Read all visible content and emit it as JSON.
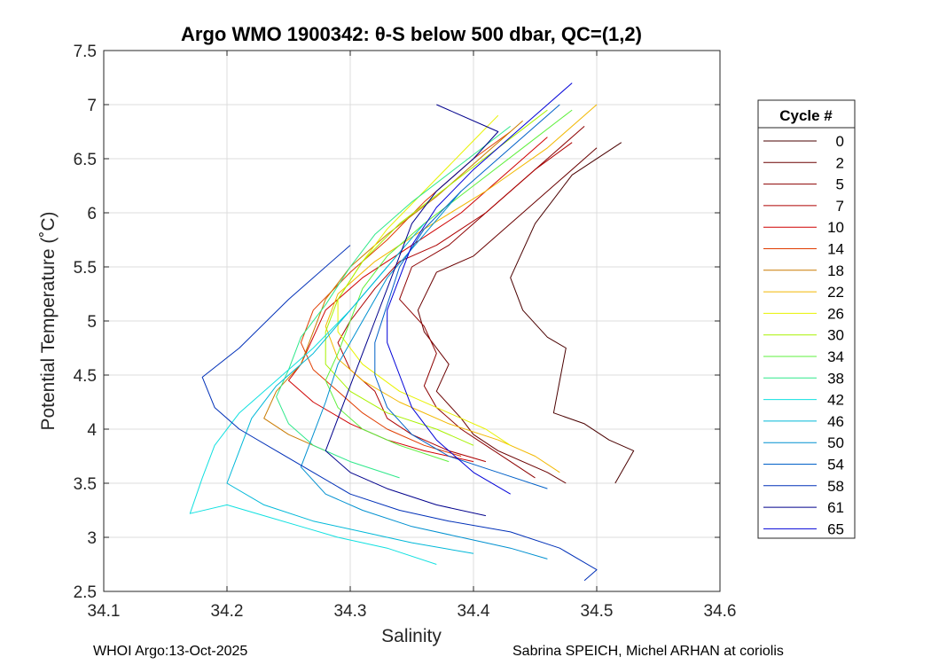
{
  "chart_data": {
    "type": "line",
    "title": "Argo WMO 1900342: θ-S below 500 dbar,  QC=(1,2)",
    "xlabel": "Salinity",
    "ylabel": "Potential Temperature (˚C)",
    "xlim": [
      34.1,
      34.6
    ],
    "ylim": [
      2.5,
      7.5
    ],
    "xticks": [
      34.1,
      34.2,
      34.3,
      34.4,
      34.5,
      34.6
    ],
    "yticks": [
      2.5,
      3,
      3.5,
      4,
      4.5,
      5,
      5.5,
      6,
      6.5,
      7,
      7.5
    ],
    "xtick_labels": [
      "34.1",
      "34.2",
      "34.3",
      "34.4",
      "34.5",
      "34.6"
    ],
    "ytick_labels": [
      "2.5",
      "3",
      "3.5",
      "4",
      "4.5",
      "5",
      "5.5",
      "6",
      "6.5",
      "7",
      "7.5"
    ],
    "grid": true,
    "legend": {
      "title": "Cycle #",
      "placement": "outside-right",
      "entries": [
        "0",
        "2",
        "5",
        "7",
        "10",
        "14",
        "18",
        "22",
        "26",
        "30",
        "34",
        "38",
        "42",
        "46",
        "50",
        "54",
        "58",
        "61",
        "65"
      ],
      "colors": [
        "#4a0000",
        "#6a0000",
        "#8c0000",
        "#ad0000",
        "#cf0000",
        "#e03c00",
        "#c97a00",
        "#f2b800",
        "#e8f200",
        "#a8f200",
        "#5ef03c",
        "#2ee88a",
        "#10e0e0",
        "#00b8d8",
        "#0090d0",
        "#0060c8",
        "#0030b8",
        "#00008c",
        "#0000d8"
      ]
    },
    "series": [
      {
        "name": "0",
        "color": "#4a0000",
        "points": [
          [
            34.52,
            6.65
          ],
          [
            34.48,
            6.35
          ],
          [
            34.45,
            5.9
          ],
          [
            34.43,
            5.4
          ],
          [
            34.44,
            5.1
          ],
          [
            34.46,
            4.85
          ],
          [
            34.475,
            4.75
          ],
          [
            34.47,
            4.45
          ],
          [
            34.465,
            4.15
          ],
          [
            34.49,
            4.05
          ],
          [
            34.51,
            3.9
          ],
          [
            34.53,
            3.8
          ],
          [
            34.515,
            3.5
          ]
        ]
      },
      {
        "name": "2",
        "color": "#6a0000",
        "points": [
          [
            34.5,
            6.6
          ],
          [
            34.47,
            6.3
          ],
          [
            34.44,
            6.0
          ],
          [
            34.4,
            5.6
          ],
          [
            34.37,
            5.45
          ],
          [
            34.355,
            5.1
          ],
          [
            34.36,
            4.9
          ],
          [
            34.38,
            4.6
          ],
          [
            34.37,
            4.35
          ],
          [
            34.39,
            4.1
          ],
          [
            34.4,
            3.95
          ],
          [
            34.42,
            3.8
          ],
          [
            34.46,
            3.6
          ],
          [
            34.475,
            3.5
          ]
        ]
      },
      {
        "name": "5",
        "color": "#8c0000",
        "points": [
          [
            34.49,
            6.8
          ],
          [
            34.46,
            6.5
          ],
          [
            34.42,
            6.1
          ],
          [
            34.38,
            5.7
          ],
          [
            34.35,
            5.5
          ],
          [
            34.34,
            5.2
          ],
          [
            34.36,
            4.95
          ],
          [
            34.37,
            4.7
          ],
          [
            34.36,
            4.4
          ],
          [
            34.37,
            4.2
          ],
          [
            34.39,
            4.0
          ],
          [
            34.41,
            3.85
          ],
          [
            34.43,
            3.7
          ],
          [
            34.45,
            3.55
          ]
        ]
      },
      {
        "name": "7",
        "color": "#ad0000",
        "points": [
          [
            34.48,
            6.65
          ],
          [
            34.45,
            6.4
          ],
          [
            34.41,
            6.0
          ],
          [
            34.37,
            5.7
          ],
          [
            34.34,
            5.55
          ],
          [
            34.32,
            5.3
          ],
          [
            34.3,
            5.0
          ],
          [
            34.29,
            4.8
          ],
          [
            34.3,
            4.55
          ],
          [
            34.32,
            4.35
          ],
          [
            34.33,
            4.1
          ],
          [
            34.35,
            3.95
          ],
          [
            34.38,
            3.8
          ],
          [
            34.41,
            3.7
          ]
        ]
      },
      {
        "name": "10",
        "color": "#cf0000",
        "points": [
          [
            34.46,
            6.7
          ],
          [
            34.43,
            6.4
          ],
          [
            34.39,
            6.0
          ],
          [
            34.35,
            5.7
          ],
          [
            34.31,
            5.4
          ],
          [
            34.28,
            5.1
          ],
          [
            34.27,
            4.85
          ],
          [
            34.26,
            4.6
          ],
          [
            34.25,
            4.45
          ],
          [
            34.27,
            4.25
          ],
          [
            34.3,
            4.05
          ],
          [
            34.33,
            3.9
          ],
          [
            34.36,
            3.8
          ],
          [
            34.4,
            3.7
          ]
        ]
      },
      {
        "name": "14",
        "color": "#e03c00",
        "points": [
          [
            34.43,
            6.75
          ],
          [
            34.4,
            6.5
          ],
          [
            34.36,
            6.1
          ],
          [
            34.33,
            5.75
          ],
          [
            34.3,
            5.45
          ],
          [
            34.27,
            5.1
          ],
          [
            34.26,
            4.8
          ],
          [
            34.27,
            4.55
          ],
          [
            34.29,
            4.35
          ],
          [
            34.31,
            4.15
          ],
          [
            34.33,
            4.0
          ],
          [
            34.36,
            3.85
          ],
          [
            34.39,
            3.75
          ]
        ]
      },
      {
        "name": "18",
        "color": "#c97a00",
        "points": [
          [
            34.44,
            6.85
          ],
          [
            34.41,
            6.55
          ],
          [
            34.37,
            6.15
          ],
          [
            34.33,
            5.8
          ],
          [
            34.3,
            5.5
          ],
          [
            34.28,
            5.2
          ],
          [
            34.27,
            4.9
          ],
          [
            34.26,
            4.6
          ],
          [
            34.24,
            4.35
          ],
          [
            34.23,
            4.1
          ],
          [
            34.25,
            3.95
          ],
          [
            34.28,
            3.8
          ]
        ]
      },
      {
        "name": "22",
        "color": "#f2b800",
        "points": [
          [
            34.5,
            7.0
          ],
          [
            34.46,
            6.6
          ],
          [
            34.41,
            6.2
          ],
          [
            34.36,
            5.85
          ],
          [
            34.32,
            5.55
          ],
          [
            34.29,
            5.25
          ],
          [
            34.28,
            4.95
          ],
          [
            34.29,
            4.65
          ],
          [
            34.31,
            4.45
          ],
          [
            34.34,
            4.25
          ],
          [
            34.38,
            4.05
          ],
          [
            34.42,
            3.9
          ],
          [
            34.45,
            3.75
          ],
          [
            34.47,
            3.6
          ]
        ]
      },
      {
        "name": "26",
        "color": "#e8f200",
        "points": [
          [
            34.42,
            6.9
          ],
          [
            34.39,
            6.55
          ],
          [
            34.36,
            6.2
          ],
          [
            34.33,
            5.85
          ],
          [
            34.31,
            5.55
          ],
          [
            34.29,
            5.2
          ],
          [
            34.29,
            4.9
          ],
          [
            34.31,
            4.6
          ],
          [
            34.34,
            4.35
          ],
          [
            34.38,
            4.15
          ],
          [
            34.41,
            4.0
          ],
          [
            34.43,
            3.85
          ]
        ]
      },
      {
        "name": "30",
        "color": "#a8f200",
        "points": [
          [
            34.46,
            6.95
          ],
          [
            34.42,
            6.6
          ],
          [
            34.38,
            6.25
          ],
          [
            34.34,
            5.9
          ],
          [
            34.31,
            5.55
          ],
          [
            34.29,
            5.2
          ],
          [
            34.28,
            4.9
          ],
          [
            34.28,
            4.6
          ],
          [
            34.3,
            4.35
          ],
          [
            34.33,
            4.15
          ],
          [
            34.37,
            4.0
          ],
          [
            34.4,
            3.85
          ]
        ]
      },
      {
        "name": "34",
        "color": "#5ef03c",
        "points": [
          [
            34.48,
            6.95
          ],
          [
            34.44,
            6.6
          ],
          [
            34.4,
            6.25
          ],
          [
            34.36,
            5.9
          ],
          [
            34.33,
            5.6
          ],
          [
            34.31,
            5.3
          ],
          [
            34.3,
            5.0
          ],
          [
            34.29,
            4.7
          ],
          [
            34.28,
            4.45
          ],
          [
            34.29,
            4.2
          ],
          [
            34.31,
            4.0
          ],
          [
            34.34,
            3.85
          ],
          [
            34.38,
            3.7
          ]
        ]
      },
      {
        "name": "38",
        "color": "#2ee88a",
        "points": [
          [
            34.43,
            6.8
          ],
          [
            34.39,
            6.45
          ],
          [
            34.35,
            6.1
          ],
          [
            34.32,
            5.8
          ],
          [
            34.3,
            5.5
          ],
          [
            34.28,
            5.15
          ],
          [
            34.26,
            4.85
          ],
          [
            34.25,
            4.55
          ],
          [
            34.24,
            4.3
          ],
          [
            34.25,
            4.05
          ],
          [
            34.27,
            3.85
          ],
          [
            34.3,
            3.7
          ],
          [
            34.34,
            3.55
          ]
        ]
      },
      {
        "name": "42",
        "color": "#10e0e0",
        "points": [
          [
            34.33,
            5.5
          ],
          [
            34.3,
            5.1
          ],
          [
            34.27,
            4.75
          ],
          [
            34.24,
            4.45
          ],
          [
            34.21,
            4.15
          ],
          [
            34.19,
            3.85
          ],
          [
            34.18,
            3.55
          ],
          [
            34.17,
            3.22
          ],
          [
            34.2,
            3.3
          ],
          [
            34.23,
            3.2
          ],
          [
            34.26,
            3.1
          ],
          [
            34.29,
            3.0
          ],
          [
            34.33,
            2.9
          ],
          [
            34.37,
            2.75
          ]
        ]
      },
      {
        "name": "46",
        "color": "#00b8d8",
        "points": [
          [
            34.36,
            5.9
          ],
          [
            34.33,
            5.5
          ],
          [
            34.3,
            5.1
          ],
          [
            34.27,
            4.7
          ],
          [
            34.24,
            4.4
          ],
          [
            34.22,
            4.1
          ],
          [
            34.21,
            3.8
          ],
          [
            34.2,
            3.5
          ],
          [
            34.23,
            3.3
          ],
          [
            34.27,
            3.15
          ],
          [
            34.31,
            3.05
          ],
          [
            34.35,
            2.95
          ],
          [
            34.4,
            2.85
          ]
        ]
      },
      {
        "name": "50",
        "color": "#0090d0",
        "points": [
          [
            34.39,
            6.2
          ],
          [
            34.36,
            5.8
          ],
          [
            34.33,
            5.4
          ],
          [
            34.31,
            5.0
          ],
          [
            34.29,
            4.6
          ],
          [
            34.28,
            4.25
          ],
          [
            34.27,
            3.95
          ],
          [
            34.26,
            3.65
          ],
          [
            34.28,
            3.4
          ],
          [
            34.31,
            3.25
          ],
          [
            34.35,
            3.1
          ],
          [
            34.39,
            3.0
          ],
          [
            34.43,
            2.9
          ],
          [
            34.46,
            2.8
          ]
        ]
      },
      {
        "name": "54",
        "color": "#0060c8",
        "points": [
          [
            34.47,
            7.0
          ],
          [
            34.43,
            6.6
          ],
          [
            34.39,
            6.2
          ],
          [
            34.36,
            5.85
          ],
          [
            34.34,
            5.5
          ],
          [
            34.33,
            5.15
          ],
          [
            34.32,
            4.8
          ],
          [
            34.32,
            4.5
          ],
          [
            34.33,
            4.2
          ],
          [
            34.35,
            3.95
          ],
          [
            34.38,
            3.75
          ],
          [
            34.42,
            3.6
          ],
          [
            34.46,
            3.45
          ]
        ]
      },
      {
        "name": "58",
        "color": "#0030b8",
        "points": [
          [
            34.3,
            5.7
          ],
          [
            34.25,
            5.2
          ],
          [
            34.21,
            4.75
          ],
          [
            34.18,
            4.48
          ],
          [
            34.19,
            4.2
          ],
          [
            34.21,
            4.0
          ],
          [
            34.24,
            3.8
          ],
          [
            34.27,
            3.6
          ],
          [
            34.3,
            3.4
          ],
          [
            34.34,
            3.25
          ],
          [
            34.38,
            3.15
          ],
          [
            34.43,
            3.05
          ],
          [
            34.47,
            2.9
          ],
          [
            34.5,
            2.7
          ],
          [
            34.49,
            2.6
          ]
        ]
      },
      {
        "name": "61",
        "color": "#00008c",
        "points": [
          [
            34.37,
            7.0
          ],
          [
            34.42,
            6.75
          ],
          [
            34.4,
            6.5
          ],
          [
            34.37,
            6.2
          ],
          [
            34.35,
            5.9
          ],
          [
            34.34,
            5.6
          ],
          [
            34.33,
            5.3
          ],
          [
            34.32,
            5.0
          ],
          [
            34.31,
            4.7
          ],
          [
            34.3,
            4.4
          ],
          [
            34.29,
            4.1
          ],
          [
            34.28,
            3.8
          ],
          [
            34.3,
            3.6
          ],
          [
            34.33,
            3.45
          ],
          [
            34.37,
            3.3
          ],
          [
            34.41,
            3.2
          ]
        ]
      },
      {
        "name": "65",
        "color": "#0000d8",
        "points": [
          [
            34.48,
            7.2
          ],
          [
            34.44,
            6.8
          ],
          [
            34.4,
            6.4
          ],
          [
            34.37,
            6.05
          ],
          [
            34.35,
            5.7
          ],
          [
            34.34,
            5.4
          ],
          [
            34.33,
            5.1
          ],
          [
            34.33,
            4.8
          ],
          [
            34.34,
            4.5
          ],
          [
            34.35,
            4.2
          ],
          [
            34.37,
            3.9
          ],
          [
            34.4,
            3.6
          ],
          [
            34.43,
            3.4
          ]
        ]
      }
    ]
  },
  "footer": {
    "left": "WHOI Argo:13-Oct-2025",
    "right": "Sabrina SPEICH, Michel ARHAN at coriolis"
  }
}
